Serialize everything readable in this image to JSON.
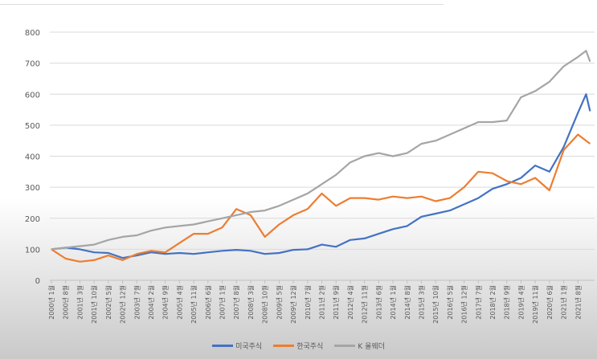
{
  "chart_data": {
    "type": "line",
    "xlabel": "",
    "ylabel": "",
    "ylim": [
      0,
      800
    ],
    "yticks": [
      0,
      100,
      200,
      300,
      400,
      500,
      600,
      700,
      800
    ],
    "grid": true,
    "legend_position": "bottom",
    "x_tick_labels": [
      "2000년 1월",
      "2000년 8월",
      "2001년 3월",
      "2001년 10월",
      "2002년 5월",
      "2002년 12월",
      "2003년 7월",
      "2004년 2월",
      "2004년 9월",
      "2005년 4월",
      "2005년 11월",
      "2006년 6월",
      "2007년 1월",
      "2007년 8월",
      "2008년 3월",
      "2008년 10월",
      "2009년 5월",
      "2009년 12월",
      "2010년 7월",
      "2011년 2월",
      "2011년 9월",
      "2012년 4월",
      "2012년 11월",
      "2013년 6월",
      "2014년 1월",
      "2014년 8월",
      "2015년 3월",
      "2015년 10월",
      "2016년 5월",
      "2016년 12월",
      "2017년 7월",
      "2018년 2월",
      "2018년 9월",
      "2019년 4월",
      "2019년 11월",
      "2020년 6월",
      "2021년 1월",
      "2021년 8월"
    ],
    "x": [
      "2000-01",
      "2000-08",
      "2001-03",
      "2001-10",
      "2002-05",
      "2002-12",
      "2003-07",
      "2004-02",
      "2004-09",
      "2005-04",
      "2005-11",
      "2006-06",
      "2007-01",
      "2007-08",
      "2008-03",
      "2008-10",
      "2009-05",
      "2009-12",
      "2010-07",
      "2011-02",
      "2011-09",
      "2012-04",
      "2012-11",
      "2013-06",
      "2014-01",
      "2014-08",
      "2015-03",
      "2015-10",
      "2016-05",
      "2016-12",
      "2017-07",
      "2018-02",
      "2018-09",
      "2019-04",
      "2019-11",
      "2020-06",
      "2021-01",
      "2021-08",
      "2021-12",
      "2022-02"
    ],
    "series": [
      {
        "name": "미국주식",
        "color": "#4472c4",
        "values": [
          100,
          105,
          100,
          90,
          88,
          72,
          80,
          90,
          85,
          88,
          85,
          90,
          95,
          98,
          95,
          85,
          88,
          98,
          100,
          115,
          108,
          130,
          135,
          150,
          165,
          175,
          205,
          215,
          225,
          245,
          265,
          295,
          310,
          330,
          370,
          350,
          430,
          540,
          600,
          545
        ]
      },
      {
        "name": "한국주식",
        "color": "#ed7d31",
        "values": [
          100,
          70,
          60,
          65,
          80,
          65,
          85,
          95,
          90,
          120,
          150,
          150,
          170,
          230,
          210,
          140,
          180,
          210,
          230,
          280,
          240,
          265,
          265,
          260,
          270,
          265,
          270,
          255,
          265,
          300,
          350,
          345,
          320,
          310,
          330,
          290,
          420,
          470,
          450,
          440
        ]
      },
      {
        "name": "K 올웨더",
        "color": "#a5a5a5",
        "values": [
          100,
          105,
          110,
          115,
          130,
          140,
          145,
          160,
          170,
          175,
          180,
          190,
          200,
          210,
          220,
          225,
          240,
          260,
          280,
          310,
          340,
          380,
          400,
          410,
          400,
          410,
          440,
          450,
          470,
          490,
          510,
          510,
          515,
          590,
          610,
          640,
          690,
          720,
          740,
          705
        ]
      }
    ]
  }
}
